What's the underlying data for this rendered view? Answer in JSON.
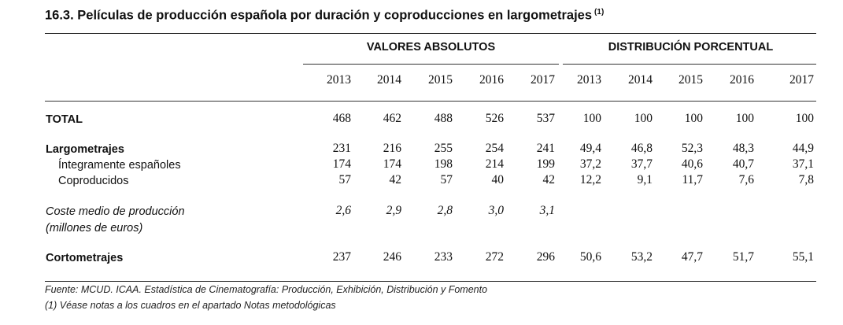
{
  "title": "16.3. Películas de producción española por duración y coproducciones en largometrajes",
  "title_note": "(1)",
  "headers": {
    "abs": "VALORES ABSOLUTOS",
    "pct": "DISTRIBUCIÓN PORCENTUAL",
    "years": [
      "2013",
      "2014",
      "2015",
      "2016",
      "2017",
      "2013",
      "2014",
      "2015",
      "2016",
      "2017"
    ]
  },
  "rows": [
    {
      "label": "TOTAL",
      "values": [
        "468",
        "462",
        "488",
        "526",
        "537",
        "100",
        "100",
        "100",
        "100",
        "100"
      ]
    },
    {
      "label": "Largometrajes",
      "values": [
        "231",
        "216",
        "255",
        "254",
        "241",
        "49,4",
        "46,8",
        "52,3",
        "48,3",
        "44,9"
      ]
    },
    {
      "label": "Íntegramente españoles",
      "values": [
        "174",
        "174",
        "198",
        "214",
        "199",
        "37,2",
        "37,7",
        "40,6",
        "40,7",
        "37,1"
      ]
    },
    {
      "label": "Coproducidos",
      "values": [
        "57",
        "42",
        "57",
        "40",
        "42",
        "12,2",
        "9,1",
        "11,7",
        "7,6",
        "7,8"
      ]
    },
    {
      "label": "Coste medio de producción",
      "label2": "(millones de euros)",
      "values": [
        "2,6",
        "2,9",
        "2,8",
        "3,0",
        "3,1"
      ]
    },
    {
      "label": "Cortometrajes",
      "values": [
        "237",
        "246",
        "233",
        "272",
        "296",
        "50,6",
        "53,2",
        "47,7",
        "51,7",
        "55,1"
      ]
    }
  ],
  "footnotes": [
    "Fuente: MCUD. ICAA. Estadística de Cinematografía: Producción, Exhibición, Distribución y Fomento",
    "(1) Véase notas a los cuadros en el apartado Notas metodológicas"
  ]
}
